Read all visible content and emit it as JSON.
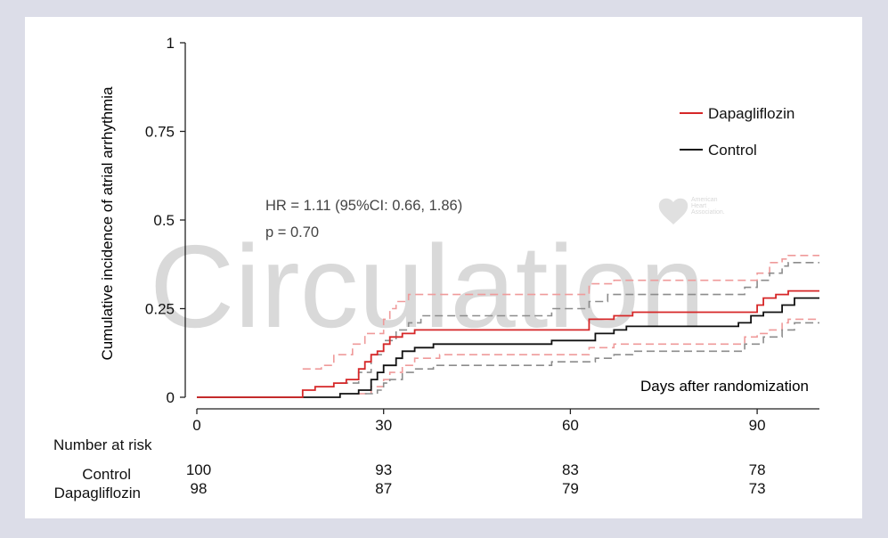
{
  "chart_data": {
    "type": "line",
    "title": "",
    "xlabel": "Days after randomization",
    "ylabel": "Cumulative incidence of atrial arrhythmia",
    "xlim": [
      0,
      100
    ],
    "ylim": [
      0,
      1
    ],
    "x_ticks": [
      0,
      30,
      60,
      90
    ],
    "x_tick_labels": [
      "0",
      "30",
      "60",
      "90"
    ],
    "y_ticks": [
      0,
      0.25,
      0.5,
      0.75,
      1
    ],
    "y_tick_labels": [
      "0",
      "0.25",
      "0.5",
      "0.75",
      "1"
    ],
    "legend": {
      "position": "top-right",
      "entries": [
        "Dapagliflozin",
        "Control"
      ]
    },
    "annotations": [
      "HR = 1.11 (95%CI: 0.66, 1.86)",
      "p = 0.70"
    ],
    "watermark": "Circulation",
    "logo_text": [
      "American",
      "Heart",
      "Association."
    ],
    "colors": {
      "dapagliflozin": "#d62728",
      "dapagliflozin_ci": "#ef9a9a",
      "control": "#111111",
      "control_ci": "#8c8c8c"
    },
    "series": [
      {
        "name": "Dapagliflozin",
        "key": "dapa",
        "style": "solid",
        "points": [
          [
            0,
            0
          ],
          [
            17,
            0
          ],
          [
            17,
            0.02
          ],
          [
            19,
            0.02
          ],
          [
            19,
            0.03
          ],
          [
            22,
            0.03
          ],
          [
            22,
            0.04
          ],
          [
            24,
            0.04
          ],
          [
            24,
            0.05
          ],
          [
            26,
            0.05
          ],
          [
            26,
            0.08
          ],
          [
            27,
            0.08
          ],
          [
            27,
            0.1
          ],
          [
            28,
            0.1
          ],
          [
            28,
            0.12
          ],
          [
            29,
            0.12
          ],
          [
            29,
            0.13
          ],
          [
            30,
            0.13
          ],
          [
            30,
            0.15
          ],
          [
            31,
            0.15
          ],
          [
            31,
            0.17
          ],
          [
            33,
            0.17
          ],
          [
            33,
            0.18
          ],
          [
            35,
            0.18
          ],
          [
            35,
            0.19
          ],
          [
            63,
            0.19
          ],
          [
            63,
            0.22
          ],
          [
            67,
            0.22
          ],
          [
            67,
            0.23
          ],
          [
            70,
            0.23
          ],
          [
            70,
            0.24
          ],
          [
            90,
            0.24
          ],
          [
            90,
            0.26
          ],
          [
            91,
            0.26
          ],
          [
            91,
            0.28
          ],
          [
            93,
            0.28
          ],
          [
            93,
            0.29
          ],
          [
            95,
            0.29
          ],
          [
            95,
            0.3
          ],
          [
            100,
            0.3
          ]
        ]
      },
      {
        "name": "Dapagliflozin 95% CI upper",
        "key": "dapa_ci",
        "style": "dashed",
        "points": [
          [
            17,
            0.08
          ],
          [
            20,
            0.08
          ],
          [
            20,
            0.09
          ],
          [
            22,
            0.09
          ],
          [
            22,
            0.12
          ],
          [
            25,
            0.12
          ],
          [
            25,
            0.15
          ],
          [
            27,
            0.15
          ],
          [
            27,
            0.18
          ],
          [
            30,
            0.18
          ],
          [
            30,
            0.22
          ],
          [
            31,
            0.22
          ],
          [
            31,
            0.25
          ],
          [
            32,
            0.25
          ],
          [
            32,
            0.27
          ],
          [
            34,
            0.27
          ],
          [
            34,
            0.29
          ],
          [
            63,
            0.29
          ],
          [
            63,
            0.32
          ],
          [
            67,
            0.32
          ],
          [
            67,
            0.33
          ],
          [
            90,
            0.33
          ],
          [
            90,
            0.35
          ],
          [
            92,
            0.35
          ],
          [
            92,
            0.38
          ],
          [
            94,
            0.38
          ],
          [
            94,
            0.39
          ],
          [
            95,
            0.39
          ],
          [
            95,
            0.4
          ],
          [
            100,
            0.4
          ]
        ]
      },
      {
        "name": "Dapagliflozin 95% CI lower",
        "key": "dapa_ci",
        "style": "dashed",
        "points": [
          [
            26,
            0.01
          ],
          [
            28,
            0.01
          ],
          [
            28,
            0.03
          ],
          [
            30,
            0.03
          ],
          [
            30,
            0.05
          ],
          [
            31,
            0.05
          ],
          [
            31,
            0.07
          ],
          [
            33,
            0.07
          ],
          [
            33,
            0.09
          ],
          [
            35,
            0.09
          ],
          [
            35,
            0.11
          ],
          [
            39,
            0.11
          ],
          [
            39,
            0.12
          ],
          [
            63,
            0.12
          ],
          [
            63,
            0.14
          ],
          [
            67,
            0.14
          ],
          [
            67,
            0.15
          ],
          [
            88,
            0.15
          ],
          [
            88,
            0.17
          ],
          [
            90,
            0.17
          ],
          [
            90,
            0.18
          ],
          [
            92,
            0.18
          ],
          [
            92,
            0.19
          ],
          [
            94,
            0.19
          ],
          [
            94,
            0.21
          ],
          [
            95,
            0.21
          ],
          [
            95,
            0.22
          ],
          [
            100,
            0.22
          ]
        ]
      },
      {
        "name": "Control",
        "key": "ctrl",
        "style": "solid",
        "points": [
          [
            0,
            0
          ],
          [
            23,
            0
          ],
          [
            23,
            0.01
          ],
          [
            26,
            0.01
          ],
          [
            26,
            0.02
          ],
          [
            28,
            0.02
          ],
          [
            28,
            0.05
          ],
          [
            29,
            0.05
          ],
          [
            29,
            0.07
          ],
          [
            30,
            0.07
          ],
          [
            30,
            0.09
          ],
          [
            32,
            0.09
          ],
          [
            32,
            0.11
          ],
          [
            33,
            0.11
          ],
          [
            33,
            0.13
          ],
          [
            35,
            0.13
          ],
          [
            35,
            0.14
          ],
          [
            38,
            0.14
          ],
          [
            38,
            0.15
          ],
          [
            57,
            0.15
          ],
          [
            57,
            0.16
          ],
          [
            64,
            0.16
          ],
          [
            64,
            0.18
          ],
          [
            67,
            0.18
          ],
          [
            67,
            0.19
          ],
          [
            69,
            0.19
          ],
          [
            69,
            0.2
          ],
          [
            87,
            0.2
          ],
          [
            87,
            0.21
          ],
          [
            89,
            0.21
          ],
          [
            89,
            0.23
          ],
          [
            91,
            0.23
          ],
          [
            91,
            0.24
          ],
          [
            94,
            0.24
          ],
          [
            94,
            0.26
          ],
          [
            96,
            0.26
          ],
          [
            96,
            0.28
          ],
          [
            100,
            0.28
          ]
        ]
      },
      {
        "name": "Control 95% CI upper",
        "key": "ctrl_ci",
        "style": "dashed",
        "points": [
          [
            23,
            0.04
          ],
          [
            26,
            0.04
          ],
          [
            26,
            0.07
          ],
          [
            28,
            0.07
          ],
          [
            28,
            0.12
          ],
          [
            30,
            0.12
          ],
          [
            30,
            0.16
          ],
          [
            32,
            0.16
          ],
          [
            32,
            0.19
          ],
          [
            34,
            0.19
          ],
          [
            34,
            0.21
          ],
          [
            36,
            0.21
          ],
          [
            36,
            0.23
          ],
          [
            57,
            0.23
          ],
          [
            57,
            0.25
          ],
          [
            63,
            0.25
          ],
          [
            63,
            0.27
          ],
          [
            66,
            0.27
          ],
          [
            66,
            0.29
          ],
          [
            88,
            0.29
          ],
          [
            88,
            0.31
          ],
          [
            90,
            0.31
          ],
          [
            90,
            0.33
          ],
          [
            92,
            0.33
          ],
          [
            92,
            0.35
          ],
          [
            94,
            0.35
          ],
          [
            94,
            0.37
          ],
          [
            95,
            0.37
          ],
          [
            95,
            0.38
          ],
          [
            100,
            0.38
          ]
        ]
      },
      {
        "name": "Control 95% CI lower",
        "key": "ctrl_ci",
        "style": "dashed",
        "points": [
          [
            27,
            0.01
          ],
          [
            29,
            0.01
          ],
          [
            29,
            0.02
          ],
          [
            30,
            0.02
          ],
          [
            30,
            0.04
          ],
          [
            31,
            0.04
          ],
          [
            31,
            0.05
          ],
          [
            33,
            0.05
          ],
          [
            33,
            0.07
          ],
          [
            35,
            0.07
          ],
          [
            35,
            0.08
          ],
          [
            38,
            0.08
          ],
          [
            38,
            0.09
          ],
          [
            57,
            0.09
          ],
          [
            57,
            0.1
          ],
          [
            64,
            0.1
          ],
          [
            64,
            0.11
          ],
          [
            67,
            0.11
          ],
          [
            67,
            0.12
          ],
          [
            70,
            0.12
          ],
          [
            70,
            0.13
          ],
          [
            88,
            0.13
          ],
          [
            88,
            0.15
          ],
          [
            91,
            0.15
          ],
          [
            91,
            0.17
          ],
          [
            94,
            0.17
          ],
          [
            94,
            0.19
          ],
          [
            96,
            0.19
          ],
          [
            96,
            0.21
          ],
          [
            100,
            0.21
          ]
        ]
      }
    ],
    "risk_table": {
      "title": "Number at risk",
      "times": [
        0,
        30,
        60,
        90
      ],
      "rows": [
        {
          "label": "Control",
          "values": [
            "100",
            "93",
            "83",
            "78"
          ]
        },
        {
          "label": "Dapagliflozin",
          "values": [
            "98",
            "87",
            "79",
            "73"
          ]
        }
      ]
    }
  }
}
